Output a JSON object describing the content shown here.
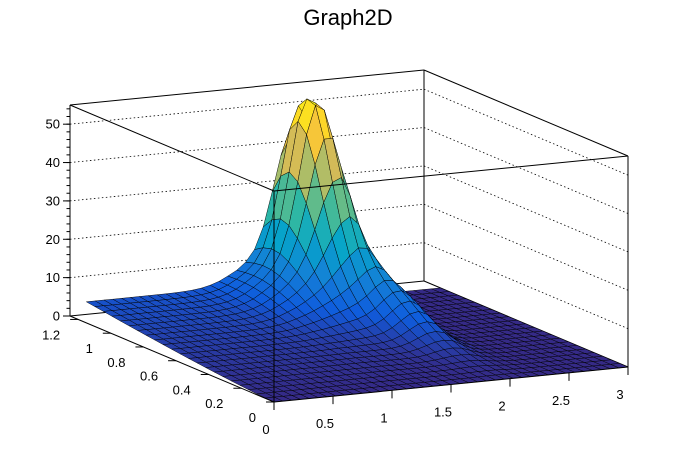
{
  "chart_data": {
    "type": "surface",
    "title": "Graph2D",
    "x_axis": {
      "range": [
        0,
        3
      ],
      "ticks": [
        0,
        0.5,
        1,
        1.5,
        2,
        2.5,
        3
      ],
      "tick_labels": [
        "0",
        "0.5",
        "1",
        "1.5",
        "2",
        "2.5",
        "3"
      ]
    },
    "y_axis": {
      "range": [
        0,
        1.25
      ],
      "ticks": [
        0,
        0.2,
        0.4,
        0.6,
        0.8,
        1,
        1.2
      ],
      "tick_labels": [
        "0",
        "0.2",
        "0.4",
        "0.6",
        "0.8",
        "1",
        "1.2"
      ]
    },
    "z_axis": {
      "range": [
        0,
        55
      ],
      "ticks": [
        0,
        10,
        20,
        30,
        40,
        50
      ],
      "tick_labels": [
        "0",
        "10",
        "20",
        "30",
        "40",
        "50"
      ]
    },
    "grid": true,
    "colormap": [
      "#352a87",
      "#0f5cdd",
      "#1481d6",
      "#06a4ca",
      "#2eb7a4",
      "#87bf77",
      "#d1bb59",
      "#fec832",
      "#f9fb0e"
    ],
    "surface": {
      "description_free": true,
      "peak": {
        "x": 1.75,
        "y": 1.0,
        "z": 52
      },
      "plateau_left_z": 5,
      "base_z": 0
    }
  }
}
